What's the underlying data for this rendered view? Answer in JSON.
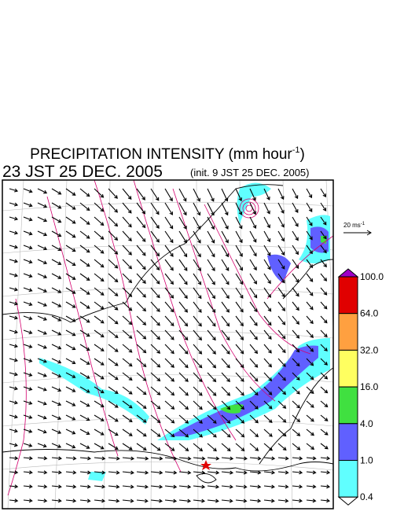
{
  "title": {
    "text": "PRECIPITATION INTENSITY (mm hour",
    "superscript": "-1",
    "close": ")"
  },
  "time": "23 JST 25 DEC. 2005",
  "init": "(init. 9 JST 25 DEC. 2005)",
  "scale": {
    "text": "20 ms",
    "superscript": "-1"
  },
  "colorbar": {
    "top_color": "#a000c8",
    "bottom_color": "#ffffff",
    "levels": [
      {
        "label": "100.0",
        "color": "#e00000"
      },
      {
        "label": "64.0",
        "color": "#ffa040"
      },
      {
        "label": "32.0",
        "color": "#ffff60"
      },
      {
        "label": "16.0",
        "color": "#40e040"
      },
      {
        "label": "4.0",
        "color": "#6060ff"
      },
      {
        "label": "1.0",
        "color": "#60ffff"
      },
      {
        "label": "0.4"
      }
    ]
  }
}
